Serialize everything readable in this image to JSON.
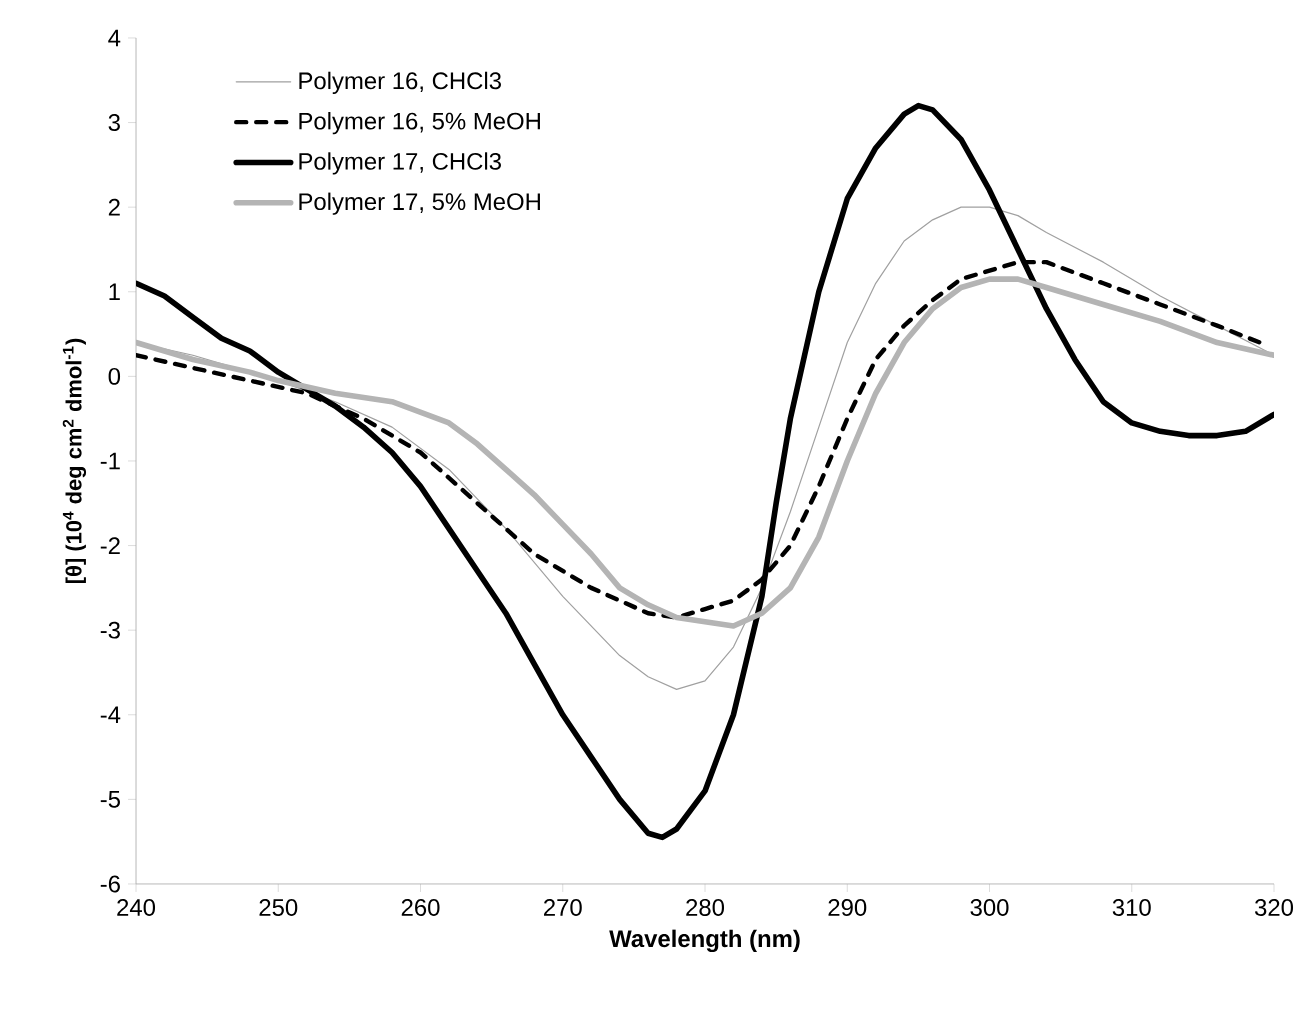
{
  "chart_data": {
    "type": "line",
    "xlabel": "Wavelength (nm)",
    "ylabel": "[θ] (10$^{4}$ deg cm$^{2}$ dmol$^{-1}$)",
    "xlim": [
      240,
      320
    ],
    "ylim": [
      -6,
      4
    ],
    "xticks": [
      240,
      250,
      260,
      270,
      280,
      290,
      300,
      310,
      320
    ],
    "yticks": [
      -6,
      -5,
      -4,
      -3,
      -2,
      -1,
      0,
      1,
      2,
      3,
      4
    ],
    "grid": false,
    "legend": "top left",
    "marker": "none",
    "series": [
      {
        "name": "Polymer 16, CHCl3",
        "color": "#a0a0a0",
        "line_style": "solid",
        "x": [
          240,
          244,
          248,
          250,
          254,
          258,
          262,
          266,
          270,
          274,
          276,
          278,
          280,
          282,
          284,
          286,
          288,
          290,
          292,
          294,
          296,
          298,
          300,
          302,
          304,
          308,
          312,
          316,
          320
        ],
        "values": [
          0.4,
          0.25,
          0.05,
          -0.05,
          -0.3,
          -0.6,
          -1.1,
          -1.8,
          -2.6,
          -3.3,
          -3.55,
          -3.7,
          -3.6,
          -3.2,
          -2.5,
          -1.6,
          -0.6,
          0.4,
          1.1,
          1.6,
          1.85,
          2.0,
          2.0,
          1.9,
          1.7,
          1.35,
          0.95,
          0.6,
          0.25
        ]
      },
      {
        "name": "Polymer 16, 5% MeOH",
        "color": "#000000",
        "line_style": "dashed",
        "x": [
          240,
          244,
          248,
          252,
          256,
          260,
          264,
          268,
          272,
          276,
          278,
          280,
          282,
          284,
          286,
          288,
          290,
          292,
          294,
          296,
          298,
          300,
          302,
          304,
          308,
          312,
          316,
          319
        ],
        "values": [
          0.25,
          0.1,
          -0.05,
          -0.2,
          -0.5,
          -0.9,
          -1.5,
          -2.1,
          -2.5,
          -2.8,
          -2.85,
          -2.75,
          -2.65,
          -2.4,
          -2.0,
          -1.3,
          -0.5,
          0.2,
          0.6,
          0.9,
          1.15,
          1.25,
          1.35,
          1.35,
          1.1,
          0.85,
          0.6,
          0.4
        ]
      },
      {
        "name": "Polymer 17, CHCl3",
        "color": "#000000",
        "line_style": "solid",
        "x": [
          240,
          242,
          244,
          246,
          248,
          250,
          252,
          254,
          256,
          258,
          260,
          262,
          264,
          266,
          268,
          270,
          272,
          274,
          276,
          277,
          278,
          280,
          282,
          284,
          285,
          286,
          288,
          290,
          292,
          294,
          295,
          296,
          298,
          300,
          302,
          304,
          306,
          308,
          310,
          312,
          314,
          316,
          318,
          320
        ],
        "values": [
          1.1,
          0.95,
          0.7,
          0.45,
          0.3,
          0.05,
          -0.15,
          -0.35,
          -0.6,
          -0.9,
          -1.3,
          -1.8,
          -2.3,
          -2.8,
          -3.4,
          -4.0,
          -4.5,
          -5.0,
          -5.4,
          -5.45,
          -5.35,
          -4.9,
          -4.0,
          -2.6,
          -1.5,
          -0.5,
          1.0,
          2.1,
          2.7,
          3.1,
          3.2,
          3.15,
          2.8,
          2.2,
          1.5,
          0.8,
          0.2,
          -0.3,
          -0.55,
          -0.65,
          -0.7,
          -0.7,
          -0.65,
          -0.45
        ]
      },
      {
        "name": "Polymer 17, 5% MeOH",
        "color": "#b4b4b4",
        "line_style": "solid",
        "x": [
          240,
          244,
          248,
          250,
          254,
          258,
          262,
          264,
          266,
          268,
          270,
          272,
          274,
          276,
          278,
          280,
          282,
          284,
          286,
          288,
          290,
          292,
          294,
          296,
          298,
          300,
          302,
          304,
          308,
          312,
          316,
          320
        ],
        "values": [
          0.4,
          0.2,
          0.05,
          -0.05,
          -0.2,
          -0.3,
          -0.55,
          -0.8,
          -1.1,
          -1.4,
          -1.75,
          -2.1,
          -2.5,
          -2.7,
          -2.85,
          -2.9,
          -2.95,
          -2.8,
          -2.5,
          -1.9,
          -1.0,
          -0.2,
          0.4,
          0.8,
          1.05,
          1.15,
          1.15,
          1.05,
          0.85,
          0.65,
          0.4,
          0.25
        ]
      }
    ]
  }
}
